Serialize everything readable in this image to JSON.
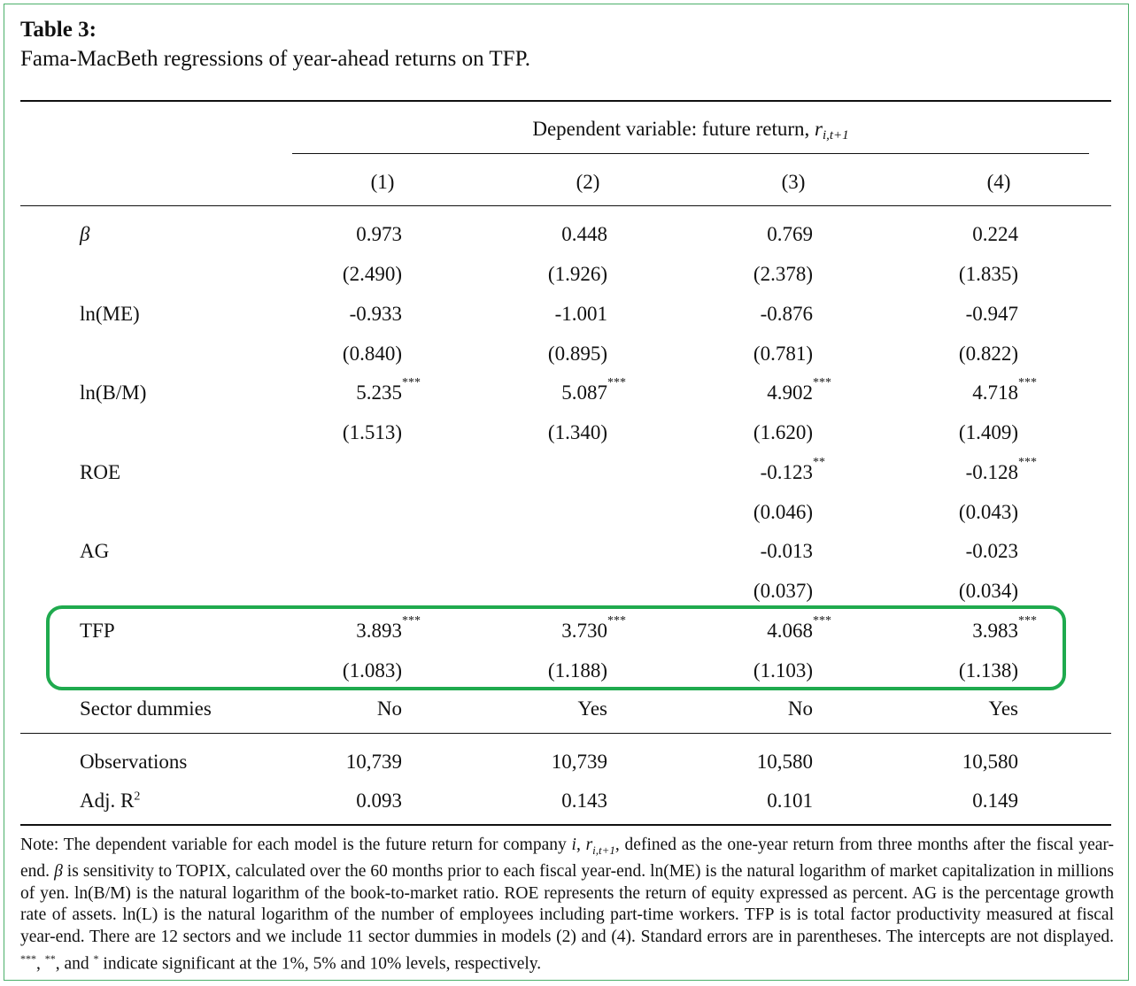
{
  "table": {
    "title": "Table 3:",
    "subtitle": "Fama-MacBeth regressions of year-ahead returns on TFP.",
    "dep_var_header": "Dependent variable: future return, ",
    "dep_var_symbol": "r",
    "dep_var_subscript": "i,t+1",
    "columns": [
      "(1)",
      "(2)",
      "(3)",
      "(4)"
    ],
    "rows": [
      {
        "label": "β",
        "coef": [
          "0.973",
          "0.448",
          "0.769",
          "0.224"
        ],
        "coef_stars": [
          "",
          "",
          "",
          ""
        ],
        "se": [
          "(2.490)",
          "(1.926)",
          "(2.378)",
          "(1.835)"
        ]
      },
      {
        "label": "ln(ME)",
        "coef": [
          "-0.933",
          "-1.001",
          "-0.876",
          "-0.947"
        ],
        "coef_stars": [
          "",
          "",
          "",
          ""
        ],
        "se": [
          "(0.840)",
          "(0.895)",
          "(0.781)",
          "(0.822)"
        ]
      },
      {
        "label": "ln(B/M)",
        "coef": [
          "5.235",
          "5.087",
          "4.902",
          "4.718"
        ],
        "coef_stars": [
          "***",
          "***",
          "***",
          "***"
        ],
        "se": [
          "(1.513)",
          "(1.340)",
          "(1.620)",
          "(1.409)"
        ]
      },
      {
        "label": "ROE",
        "coef": [
          "",
          "",
          "-0.123",
          "-0.128"
        ],
        "coef_stars": [
          "",
          "",
          "**",
          "***"
        ],
        "se": [
          "",
          "",
          "(0.046)",
          "(0.043)"
        ]
      },
      {
        "label": "AG",
        "coef": [
          "",
          "",
          "-0.013",
          "-0.023"
        ],
        "coef_stars": [
          "",
          "",
          "",
          ""
        ],
        "se": [
          "",
          "",
          "(0.037)",
          "(0.034)"
        ]
      },
      {
        "label": "TFP",
        "coef": [
          "3.893",
          "3.730",
          "4.068",
          "3.983"
        ],
        "coef_stars": [
          "***",
          "***",
          "***",
          "***"
        ],
        "se": [
          "(1.083)",
          "(1.188)",
          "(1.103)",
          "(1.138)"
        ]
      }
    ],
    "sector_dummies": {
      "label": "Sector dummies",
      "values": [
        "No",
        "Yes",
        "No",
        "Yes"
      ]
    },
    "observations": {
      "label": "Observations",
      "values": [
        "10,739",
        "10,739",
        "10,580",
        "10,580"
      ]
    },
    "adj_r2": {
      "label": "Adj. R",
      "label_sup": "2",
      "values": [
        "0.093",
        "0.143",
        "0.101",
        "0.149"
      ]
    },
    "note_parts": {
      "p1": "Note: The dependent variable for each model is the future return for company ",
      "i": "i",
      "p2": ", ",
      "r": "r",
      "r_sub": "i,t+1",
      "p3": ", defined as the one-year return from three months after the fiscal year-end. ",
      "beta": "β",
      "p4": " is sensitivity to TOPIX, calculated over the 60 months prior to each fiscal year-end. ln(ME) is the natural logarithm of market capitalization in millions of yen. ln(B/M) is the natural logarithm of the book-to-market ratio. ROE represents the return of equity expressed as percent. AG is the percentage growth rate of assets. ln(L) is the natural logarithm of the number of employees including part-time workers. TFP is is total factor productivity measured at fiscal year-end. There are 12 sectors and we include 11 sector dummies in models (2) and (4). Standard errors are in parentheses. The intercepts are not displayed. ",
      "s3": "***",
      "c1": ", ",
      "s2": "**",
      "c2": ", and ",
      "s1": "*",
      "p5": " indicate significant at the 1%, 5% and 10% levels, respectively."
    },
    "highlight_color": "#1faa4e"
  }
}
